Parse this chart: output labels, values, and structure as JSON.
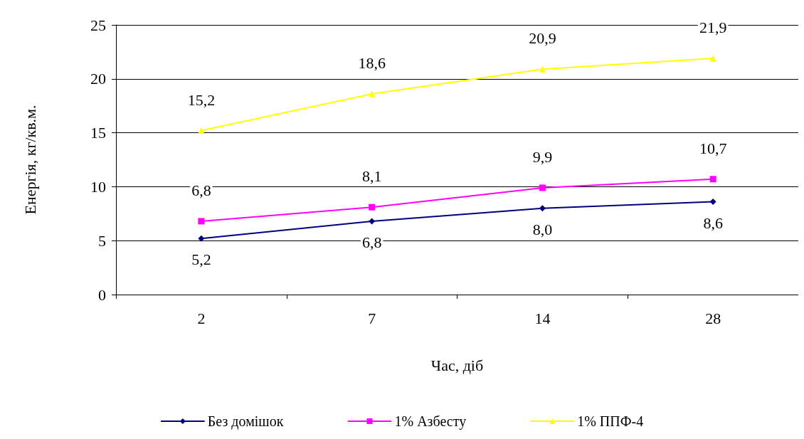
{
  "chart_data": {
    "type": "line",
    "xlabel": "Час, діб",
    "ylabel": "Енергія, кг/кв.м.",
    "categories": [
      "2",
      "7",
      "14",
      "28"
    ],
    "ylim": [
      0,
      25
    ],
    "yticks": [
      0,
      5,
      10,
      15,
      20,
      25
    ],
    "grid": "y",
    "legend": "bottom",
    "series": [
      {
        "name": "Без домішок",
        "color": "#000080",
        "marker": "diamond",
        "values": [
          5.2,
          6.8,
          8.0,
          8.6
        ],
        "value_labels": [
          "5,2",
          "6,8",
          "8,0",
          "8,6"
        ]
      },
      {
        "name": "1% Азбесту",
        "color": "#ff00ff",
        "marker": "square",
        "values": [
          6.8,
          8.1,
          9.9,
          10.7
        ],
        "value_labels": [
          "6,8",
          "8,1",
          "9,9",
          "10,7"
        ]
      },
      {
        "name": "1% ППФ-4",
        "color": "#ffff00",
        "marker": "triangle",
        "values": [
          15.2,
          18.6,
          20.9,
          21.9
        ],
        "value_labels": [
          "15,2",
          "18,6",
          "20,9",
          "21,9"
        ]
      }
    ]
  }
}
